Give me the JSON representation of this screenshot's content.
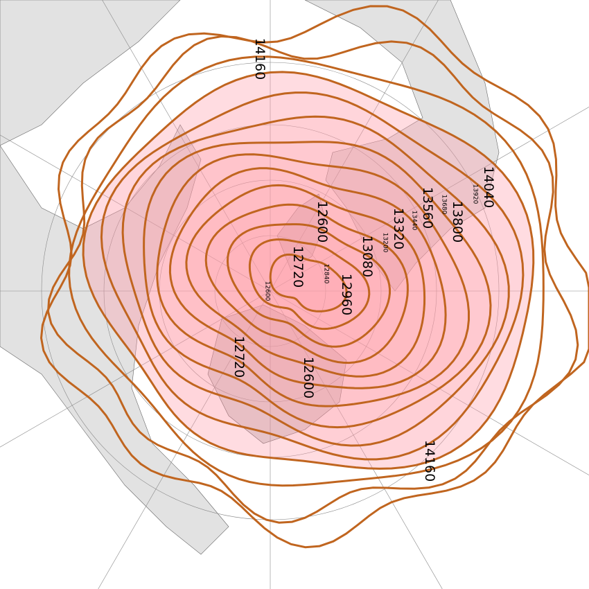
{
  "map": {
    "projection": "polar stereographic (north pole)",
    "contour_color": "#c0651f",
    "fill_color": "#ff9aa8",
    "land_color": "#e2e2e2",
    "contour_levels": [
      12600,
      12720,
      12840,
      12960,
      13080,
      13200,
      13320,
      13440,
      13560,
      13680,
      13800,
      13920,
      14040,
      14160
    ],
    "labels": [
      {
        "text": "14160"
      },
      {
        "text": "14160"
      },
      {
        "text": "14040"
      },
      {
        "text": "13920"
      },
      {
        "text": "13800"
      },
      {
        "text": "13680"
      },
      {
        "text": "13560"
      },
      {
        "text": "13440"
      },
      {
        "text": "13320"
      },
      {
        "text": "13200"
      },
      {
        "text": "13080"
      },
      {
        "text": "12960"
      },
      {
        "text": "12840"
      },
      {
        "text": "12720"
      },
      {
        "text": "12720"
      },
      {
        "text": "12600"
      },
      {
        "text": "12600"
      },
      {
        "text": "12600"
      }
    ]
  }
}
